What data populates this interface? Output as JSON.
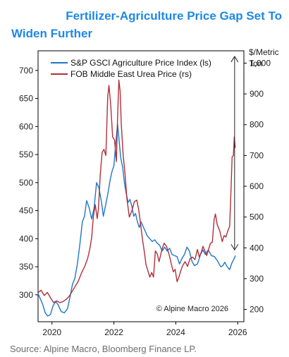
{
  "title_line1": "Fertilizer-Agriculture Price Gap Set To",
  "title_line2": "Widen Further",
  "source": "Source: Alpine Macro, Bloomberg Finance LP.",
  "colors": {
    "title": "#1e88e5",
    "agri": "#1f77c9",
    "urea": "#b0303a",
    "axis": "#000000",
    "source": "#6d6d6d"
  },
  "chart_data": {
    "type": "line",
    "right_axis_label": [
      "$/Metric",
      "Ton"
    ],
    "copyright": "© Alpine Macro 2026",
    "x_ticks": [
      "2020",
      "2022",
      "2024",
      "2026"
    ],
    "x_range": [
      2019.55,
      2026.2
    ],
    "left_ylim": [
      252,
      735
    ],
    "right_ylim": [
      160,
      1040
    ],
    "left_ticks": [
      300,
      350,
      400,
      450,
      500,
      550,
      600,
      650,
      700
    ],
    "right_ticks": [
      200,
      300,
      400,
      500,
      600,
      700,
      800,
      900,
      1000
    ],
    "right_tick_labels": [
      "200",
      "300",
      "400",
      "500",
      "600",
      "700",
      "800",
      "900",
      "1,000"
    ],
    "gap_arrow": {
      "x": 2025.9,
      "from": 380,
      "to": 725
    },
    "series": [
      {
        "name": "S&P GSCI Agriculture Price Index (ls)",
        "axis": "left",
        "points": [
          [
            2019.55,
            302
          ],
          [
            2019.62,
            293
          ],
          [
            2019.7,
            283
          ],
          [
            2019.78,
            268
          ],
          [
            2019.86,
            262
          ],
          [
            2019.95,
            265
          ],
          [
            2020.03,
            280
          ],
          [
            2020.12,
            288
          ],
          [
            2020.2,
            282
          ],
          [
            2020.3,
            270
          ],
          [
            2020.4,
            268
          ],
          [
            2020.5,
            275
          ],
          [
            2020.58,
            295
          ],
          [
            2020.66,
            318
          ],
          [
            2020.74,
            330
          ],
          [
            2020.82,
            355
          ],
          [
            2020.9,
            390
          ],
          [
            2020.98,
            430
          ],
          [
            2021.05,
            440
          ],
          [
            2021.12,
            468
          ],
          [
            2021.2,
            455
          ],
          [
            2021.28,
            435
          ],
          [
            2021.36,
            455
          ],
          [
            2021.44,
            500
          ],
          [
            2021.52,
            490
          ],
          [
            2021.6,
            465
          ],
          [
            2021.66,
            440
          ],
          [
            2021.74,
            462
          ],
          [
            2021.82,
            485
          ],
          [
            2021.88,
            505
          ],
          [
            2021.94,
            520
          ],
          [
            2022.0,
            530
          ],
          [
            2022.06,
            570
          ],
          [
            2022.12,
            605
          ],
          [
            2022.17,
            575
          ],
          [
            2022.22,
            545
          ],
          [
            2022.28,
            528
          ],
          [
            2022.34,
            500
          ],
          [
            2022.4,
            480
          ],
          [
            2022.46,
            465
          ],
          [
            2022.52,
            470
          ],
          [
            2022.58,
            458
          ],
          [
            2022.64,
            440
          ],
          [
            2022.7,
            445
          ],
          [
            2022.76,
            430
          ],
          [
            2022.82,
            420
          ],
          [
            2022.88,
            430
          ],
          [
            2022.94,
            422
          ],
          [
            2023.0,
            415
          ],
          [
            2023.08,
            405
          ],
          [
            2023.16,
            400
          ],
          [
            2023.24,
            395
          ],
          [
            2023.32,
            398
          ],
          [
            2023.4,
            392
          ],
          [
            2023.48,
            388
          ],
          [
            2023.56,
            378
          ],
          [
            2023.64,
            385
          ],
          [
            2023.72,
            378
          ],
          [
            2023.8,
            383
          ],
          [
            2023.88,
            372
          ],
          [
            2023.96,
            370
          ],
          [
            2024.04,
            368
          ],
          [
            2024.12,
            355
          ],
          [
            2024.2,
            365
          ],
          [
            2024.28,
            372
          ],
          [
            2024.36,
            385
          ],
          [
            2024.44,
            378
          ],
          [
            2024.52,
            360
          ],
          [
            2024.6,
            352
          ],
          [
            2024.7,
            355
          ],
          [
            2024.8,
            372
          ],
          [
            2024.88,
            380
          ],
          [
            2024.95,
            372
          ],
          [
            2025.05,
            380
          ],
          [
            2025.15,
            370
          ],
          [
            2025.25,
            368
          ],
          [
            2025.35,
            360
          ],
          [
            2025.45,
            350
          ],
          [
            2025.52,
            352
          ],
          [
            2025.58,
            358
          ],
          [
            2025.66,
            350
          ],
          [
            2025.74,
            345
          ],
          [
            2025.8,
            355
          ],
          [
            2025.87,
            363
          ],
          [
            2025.93,
            370
          ]
        ]
      },
      {
        "name": "FOB Middle East Urea Price (rs)",
        "axis": "right",
        "points": [
          [
            2019.55,
            255
          ],
          [
            2019.65,
            262
          ],
          [
            2019.75,
            245
          ],
          [
            2019.85,
            255
          ],
          [
            2019.95,
            238
          ],
          [
            2020.05,
            222
          ],
          [
            2020.15,
            228
          ],
          [
            2020.25,
            222
          ],
          [
            2020.35,
            225
          ],
          [
            2020.45,
            232
          ],
          [
            2020.55,
            242
          ],
          [
            2020.65,
            258
          ],
          [
            2020.75,
            275
          ],
          [
            2020.85,
            292
          ],
          [
            2020.95,
            318
          ],
          [
            2021.05,
            338
          ],
          [
            2021.15,
            365
          ],
          [
            2021.22,
            395
          ],
          [
            2021.28,
            432
          ],
          [
            2021.34,
            505
          ],
          [
            2021.4,
            540
          ],
          [
            2021.46,
            495
          ],
          [
            2021.5,
            525
          ],
          [
            2021.56,
            640
          ],
          [
            2021.62,
            710
          ],
          [
            2021.68,
            720
          ],
          [
            2021.74,
            700
          ],
          [
            2021.8,
            890
          ],
          [
            2021.84,
            928
          ],
          [
            2021.9,
            860
          ],
          [
            2021.96,
            760
          ],
          [
            2022.02,
            750
          ],
          [
            2022.08,
            680
          ],
          [
            2022.12,
            820
          ],
          [
            2022.16,
            945
          ],
          [
            2022.2,
            910
          ],
          [
            2022.24,
            800
          ],
          [
            2022.3,
            700
          ],
          [
            2022.36,
            640
          ],
          [
            2022.42,
            560
          ],
          [
            2022.5,
            500
          ],
          [
            2022.58,
            520
          ],
          [
            2022.66,
            550
          ],
          [
            2022.74,
            555
          ],
          [
            2022.8,
            525
          ],
          [
            2022.86,
            480
          ],
          [
            2022.92,
            430
          ],
          [
            2022.98,
            390
          ],
          [
            2023.04,
            345
          ],
          [
            2023.1,
            325
          ],
          [
            2023.16,
            305
          ],
          [
            2023.22,
            320
          ],
          [
            2023.28,
            305
          ],
          [
            2023.34,
            390
          ],
          [
            2023.4,
            380
          ],
          [
            2023.46,
            355
          ],
          [
            2023.54,
            390
          ],
          [
            2023.62,
            415
          ],
          [
            2023.7,
            405
          ],
          [
            2023.78,
            380
          ],
          [
            2023.86,
            345
          ],
          [
            2023.92,
            322
          ],
          [
            2023.98,
            330
          ],
          [
            2024.04,
            290
          ],
          [
            2024.1,
            305
          ],
          [
            2024.16,
            325
          ],
          [
            2024.22,
            342
          ],
          [
            2024.3,
            355
          ],
          [
            2024.38,
            340
          ],
          [
            2024.46,
            365
          ],
          [
            2024.54,
            370
          ],
          [
            2024.62,
            362
          ],
          [
            2024.7,
            395
          ],
          [
            2024.76,
            370
          ],
          [
            2024.82,
            385
          ],
          [
            2024.88,
            405
          ],
          [
            2024.94,
            390
          ],
          [
            2025.0,
            375
          ],
          [
            2025.06,
            395
          ],
          [
            2025.12,
            415
          ],
          [
            2025.18,
            418
          ],
          [
            2025.24,
            492
          ],
          [
            2025.28,
            510
          ],
          [
            2025.34,
            475
          ],
          [
            2025.42,
            455
          ],
          [
            2025.5,
            420
          ],
          [
            2025.56,
            440
          ],
          [
            2025.62,
            435
          ],
          [
            2025.68,
            455
          ],
          [
            2025.74,
            470
          ],
          [
            2025.78,
            580
          ],
          [
            2025.82,
            695
          ],
          [
            2025.86,
            700
          ],
          [
            2025.89,
            760
          ],
          [
            2025.92,
            725
          ]
        ]
      }
    ]
  }
}
